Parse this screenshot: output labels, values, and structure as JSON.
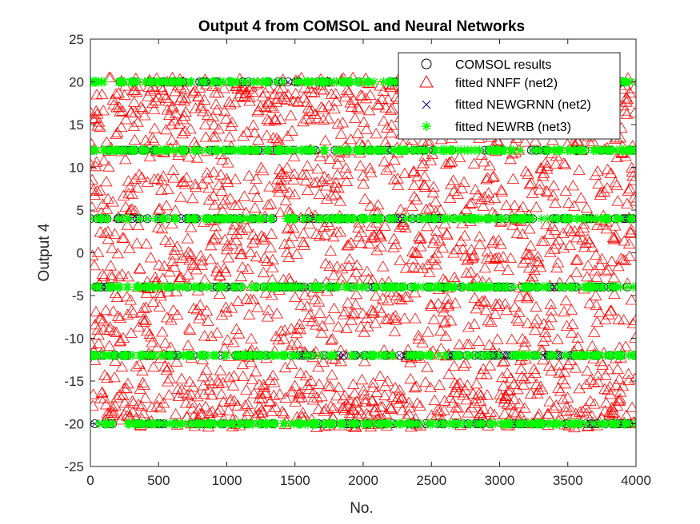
{
  "chart_data": {
    "type": "scatter",
    "title": "Output 4 from COMSOL and Neural Networks",
    "xlabel": "No.",
    "ylabel": "Output 4",
    "xlim": [
      0,
      4000
    ],
    "ylim": [
      -25,
      25
    ],
    "xticks": [
      0,
      500,
      1000,
      1500,
      2000,
      2500,
      3000,
      3500,
      4000
    ],
    "yticks": [
      -25,
      -20,
      -15,
      -10,
      -5,
      0,
      5,
      10,
      15,
      20,
      25
    ],
    "grid": false,
    "legend_position": "top-right",
    "n_samples": 4000,
    "series": [
      {
        "name": "COMSOL results",
        "marker": "circle",
        "color": "#000000",
        "y_levels": [
          -20,
          -12,
          -4,
          4,
          12,
          20
        ],
        "x_range": [
          1,
          4000
        ],
        "description_values": "discrete targets at each sample index"
      },
      {
        "name": "fitted NNFF (net2)",
        "marker": "triangle",
        "color": "#ff0000",
        "y_range": [
          -20.5,
          20.5
        ],
        "x_range": [
          1,
          4000
        ]
      },
      {
        "name": "fitted NEWGRNN (net2)",
        "marker": "x",
        "color": "#00007f",
        "y_levels": [
          -20,
          -12,
          -4,
          4,
          12,
          20
        ],
        "x_range": [
          1,
          4000
        ]
      },
      {
        "name": "fitted NEWRB (net3)",
        "marker": "asterisk",
        "color": "#00ff00",
        "y_levels": [
          -20,
          -12,
          -4,
          4,
          12,
          20
        ],
        "x_range": [
          1,
          4000
        ]
      }
    ]
  }
}
